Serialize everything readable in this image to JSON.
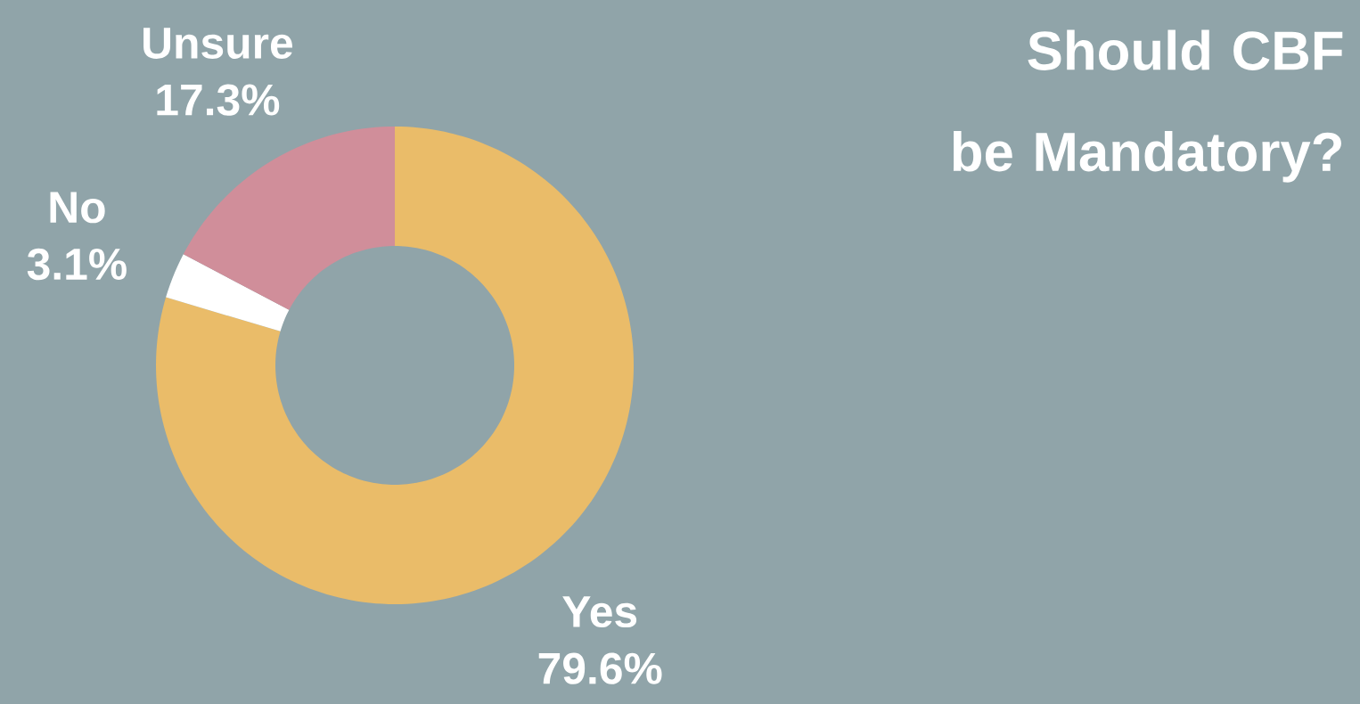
{
  "chart_data": {
    "type": "donut",
    "title": "Should CBF be Mandatory?",
    "categories": [
      "Yes",
      "No",
      "Unsure"
    ],
    "values": [
      79.6,
      3.1,
      17.3
    ],
    "colors": [
      "#eabc69",
      "#ffffff",
      "#d08e9a"
    ],
    "value_labels": [
      "79.6%",
      "3.1%",
      "17.3%"
    ]
  }
}
